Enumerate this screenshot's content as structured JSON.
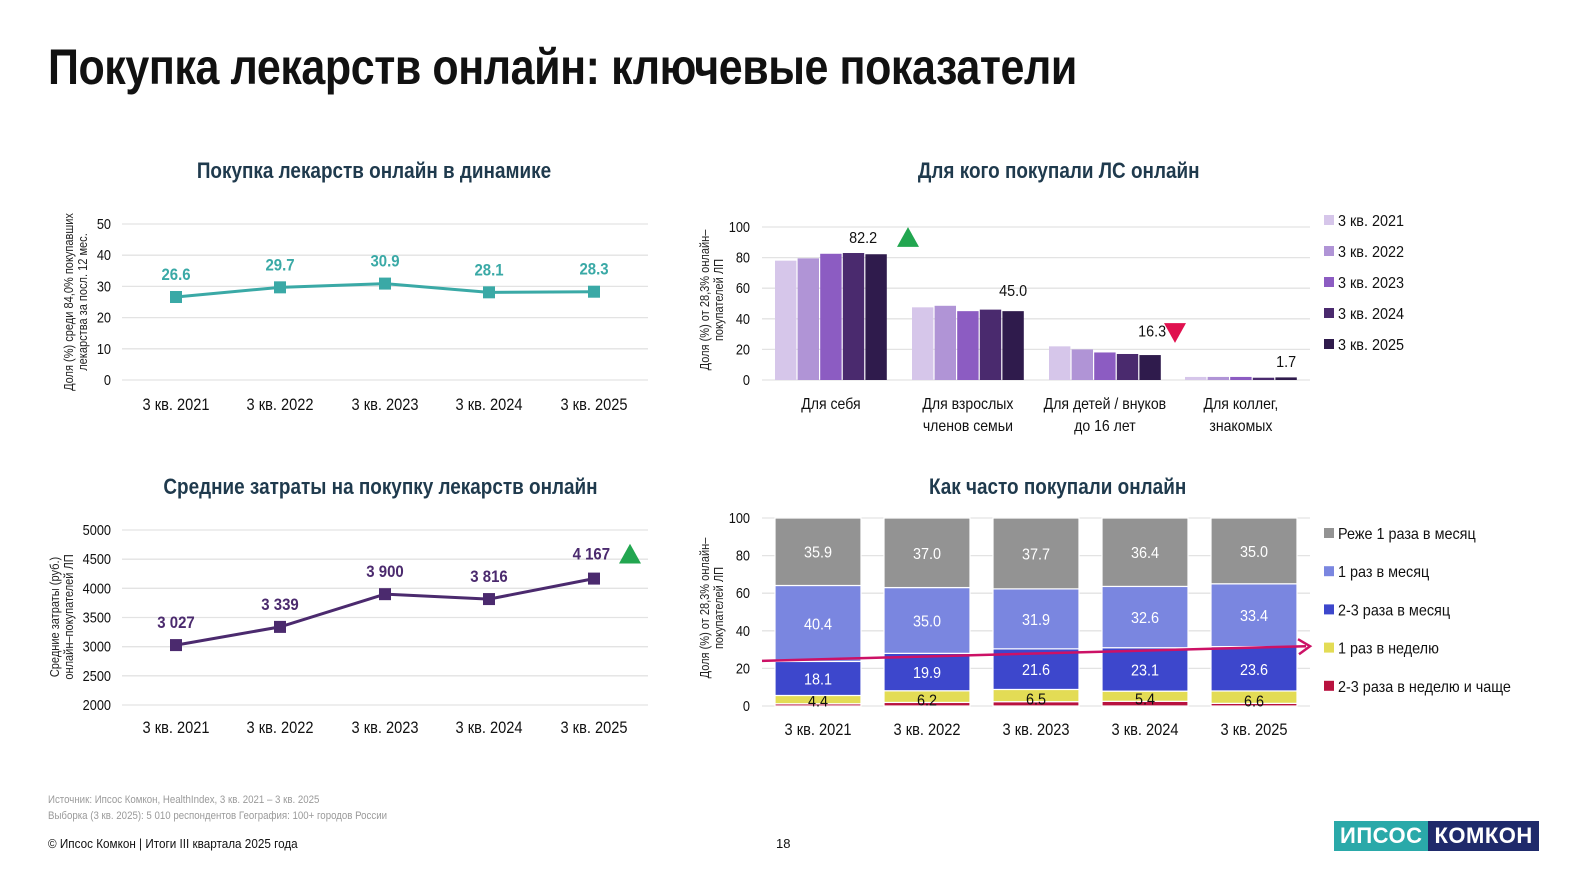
{
  "page": {
    "title": "Покупка лекарств онлайн: ключевые показатели",
    "source_line": "Источник: Ипсос Комкон, HealthIndex, 3 кв. 2021 – 3 кв. 2025",
    "sample_line": "Выборка (3 кв. 2025): 5 010 респондентов География: 100+ городов России",
    "copyright": "© Ипсос Комкон | Итоги III квартала 2025 года",
    "page_number": "18",
    "logo": {
      "part1": "ИПСОС",
      "part2": "КОМКОН"
    }
  },
  "colors": {
    "teal": "#3aa9a6",
    "purple_line": "#4b2a6e",
    "up_arrow": "#22a650",
    "down_arrow": "#e0114f",
    "trend_arrow": "#cc1166",
    "panel_title": "#1f3a4d"
  },
  "chart_data": [
    {
      "id": "dynamics",
      "type": "line",
      "title": "Покупка лекарств онлайн в динамике",
      "ylabel": "Доля (%) среди 84,0% покупавших лекарства за посл. 12 мес.",
      "xlabel": "",
      "categories": [
        "3 кв. 2021",
        "3 кв. 2022",
        "3 кв. 2023",
        "3 кв. 2024",
        "3 кв. 2025"
      ],
      "values": [
        26.6,
        29.7,
        30.9,
        28.1,
        28.3
      ],
      "labels": [
        "26.6",
        "29.7",
        "30.9",
        "28.1",
        "28.3"
      ],
      "ylim": [
        0,
        50
      ],
      "yticks": [
        0,
        10,
        20,
        30,
        40,
        50
      ],
      "grid": true,
      "color": "#3aa9a6"
    },
    {
      "id": "for_whom",
      "type": "bar",
      "title": "Для кого покупали ЛС онлайн",
      "ylabel": "Доля (%) от 28,3% онлайн-покупателей ЛП",
      "categories": [
        "Для себя",
        "Для взрослых членов семьи",
        "Для детей / внуков до 16 лет",
        "Для коллег, знакомых"
      ],
      "category_lines": [
        [
          "Для себя"
        ],
        [
          "Для взрослых",
          "членов семьи"
        ],
        [
          "Для детей / внуков",
          "до 16 лет"
        ],
        [
          "Для коллег,",
          "знакомых"
        ]
      ],
      "series": [
        {
          "name": "3 кв. 2021",
          "color": "#d6c6ea",
          "values": [
            78.0,
            47.5,
            22.0,
            2.0
          ]
        },
        {
          "name": "3 кв. 2022",
          "color": "#b094d6",
          "values": [
            79.5,
            48.5,
            20.0,
            2.0
          ]
        },
        {
          "name": "3 кв. 2023",
          "color": "#8c5cc2",
          "values": [
            82.5,
            45.0,
            18.0,
            2.0
          ]
        },
        {
          "name": "3 кв. 2024",
          "color": "#4a2a6e",
          "values": [
            83.0,
            46.0,
            17.0,
            1.5
          ]
        },
        {
          "name": "3 кв. 2025",
          "color": "#2f1b4c",
          "values": [
            82.2,
            45.0,
            16.3,
            1.7
          ]
        }
      ],
      "data_labels": [
        "82.2",
        "45.0",
        "16.3",
        "1.7"
      ],
      "markers": [
        {
          "category": "Для себя",
          "type": "up",
          "color": "#22a650"
        },
        {
          "category": "Для детей / внуков до 16 лет",
          "type": "down",
          "color": "#e0114f"
        }
      ],
      "ylim": [
        0,
        100
      ],
      "yticks": [
        0,
        20,
        40,
        60,
        80,
        100
      ],
      "grid": true,
      "legend": "right"
    },
    {
      "id": "spend",
      "type": "line",
      "title": "Средние затраты на покупку лекарств онлайн",
      "ylabel": "Средние затраты (руб.) онлайн–покупателей ЛП",
      "categories": [
        "3 кв. 2021",
        "3 кв. 2022",
        "3 кв. 2023",
        "3 кв. 2024",
        "3 кв. 2025"
      ],
      "values": [
        3027,
        3339,
        3900,
        3816,
        4167
      ],
      "labels": [
        "3 027",
        "3 339",
        "3 900",
        "3 816",
        "4 167"
      ],
      "markers": [
        {
          "category": "3 кв. 2025",
          "type": "up",
          "color": "#22a650"
        }
      ],
      "ylim": [
        2000,
        5000
      ],
      "yticks": [
        2000,
        2500,
        3000,
        3500,
        4000,
        4500,
        5000
      ],
      "grid": true,
      "color": "#4b2a6e"
    },
    {
      "id": "frequency",
      "type": "bar",
      "stacked": true,
      "title": "Как часто покупали онлайн",
      "ylabel": "Доля (%) от 28,3% онлайн-покупателей ЛП",
      "categories": [
        "3 кв. 2021",
        "3 кв. 2022",
        "3 кв. 2023",
        "3 кв. 2024",
        "3 кв. 2025"
      ],
      "series": [
        {
          "name": "2-3 раза в неделю и чаще",
          "color": "#b8123f",
          "values": [
            1.2,
            1.9,
            2.3,
            2.5,
            1.4
          ],
          "show_labels": false
        },
        {
          "name": "1 раз в неделю",
          "color": "#e3dc55",
          "values": [
            4.4,
            6.2,
            6.5,
            5.4,
            6.6
          ],
          "show_labels": true,
          "label_color": "#111111"
        },
        {
          "name": "2-3 раза в месяц",
          "color": "#3d47cc",
          "values": [
            18.1,
            19.9,
            21.6,
            23.1,
            23.6
          ],
          "show_labels": true,
          "label_color": "#ffffff"
        },
        {
          "name": "1 раз в месяц",
          "color": "#7a86e0",
          "values": [
            40.4,
            35.0,
            31.9,
            32.6,
            33.4
          ],
          "show_labels": true,
          "label_color": "#ffffff"
        },
        {
          "name": "Реже 1 раза в месяц",
          "color": "#939393",
          "values": [
            35.9,
            37.0,
            37.7,
            36.4,
            35.0
          ],
          "show_labels": true,
          "label_color": "#ffffff"
        }
      ],
      "legend_order": [
        "Реже 1 раза в месяц",
        "1 раз в месяц",
        "2-3 раза в месяц",
        "1 раз в неделю",
        "2-3 раза в неделю и чаще"
      ],
      "trend_arrow": {
        "from_value": 24,
        "to_value": 35,
        "color": "#cc1166"
      },
      "ylim": [
        0,
        100
      ],
      "yticks": [
        0,
        20,
        40,
        60,
        80,
        100
      ],
      "grid": true,
      "legend": "right"
    }
  ]
}
